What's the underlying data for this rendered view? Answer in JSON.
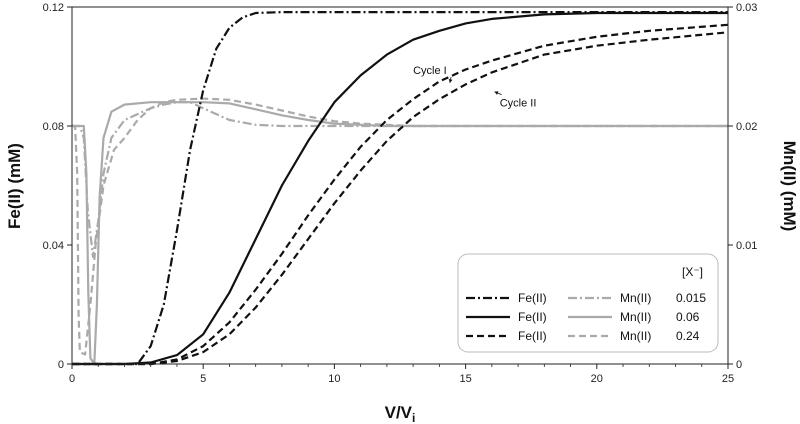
{
  "chart_data": {
    "type": "line",
    "xlabel": "V/V",
    "xlabel_sub": "i",
    "ylabel_left": "Fe(II) (mM)",
    "ylabel_right": "Mn(II) (mM)",
    "xlim": [
      0,
      25
    ],
    "ylim_left": [
      0,
      0.12
    ],
    "ylim_right": [
      0,
      0.03
    ],
    "x_ticks": [
      0,
      5,
      10,
      15,
      20,
      25
    ],
    "y_left_ticks": [
      0,
      0.04,
      0.08,
      0.12
    ],
    "y_left_tick_labels": [
      "0",
      "0.04",
      "0.08",
      "0.12"
    ],
    "y_right_ticks": [
      0,
      0.01,
      0.02,
      0.03
    ],
    "y_right_tick_labels": [
      "0",
      "0.01",
      "0.02",
      "0.03"
    ],
    "grid": false,
    "legend": {
      "position": "bottom-right",
      "header": "[X⁻]",
      "rows": [
        {
          "fe_label": "Fe(II)",
          "mn_label": "Mn(II)",
          "conc": "0.015",
          "dash": "dashdot"
        },
        {
          "fe_label": "Fe(II)",
          "mn_label": "Mn(II)",
          "conc": "0.06",
          "dash": "solid"
        },
        {
          "fe_label": "Fe(II)",
          "mn_label": "Mn(II)",
          "conc": "0.24",
          "dash": "dashed"
        }
      ]
    },
    "annotations": [
      {
        "text": "Cycle I",
        "x": 13.0,
        "y_left": 0.0975,
        "arrow_to": [
          14.4,
          0.0945
        ]
      },
      {
        "text": "Cycle II",
        "x": 16.3,
        "y_left": 0.0865,
        "arrow_to": [
          16.1,
          0.0915
        ]
      }
    ],
    "series": [
      {
        "axis": "left",
        "dash": "dashdot",
        "color": "#111111",
        "points": [
          [
            0,
            0
          ],
          [
            2.5,
            0
          ],
          [
            3,
            0.006
          ],
          [
            3.5,
            0.02
          ],
          [
            4,
            0.045
          ],
          [
            4.5,
            0.072
          ],
          [
            5,
            0.092
          ],
          [
            5.5,
            0.106
          ],
          [
            6,
            0.113
          ],
          [
            6.5,
            0.1165
          ],
          [
            7,
            0.118
          ],
          [
            8,
            0.1183
          ],
          [
            10,
            0.1183
          ],
          [
            25,
            0.1183
          ]
        ]
      },
      {
        "axis": "left",
        "dash": "solid",
        "color": "#111111",
        "points": [
          [
            0,
            0
          ],
          [
            2,
            0
          ],
          [
            3,
            0.0005
          ],
          [
            4,
            0.003
          ],
          [
            5,
            0.01
          ],
          [
            6,
            0.024
          ],
          [
            7,
            0.042
          ],
          [
            8,
            0.06
          ],
          [
            9,
            0.075
          ],
          [
            10,
            0.088
          ],
          [
            11,
            0.097
          ],
          [
            12,
            0.104
          ],
          [
            13,
            0.109
          ],
          [
            14,
            0.112
          ],
          [
            15,
            0.1145
          ],
          [
            16,
            0.116
          ],
          [
            18,
            0.1175
          ],
          [
            20,
            0.118
          ],
          [
            25,
            0.118
          ]
        ]
      },
      {
        "axis": "left",
        "dash": "dashed",
        "color": "#111111",
        "points": [
          [
            0,
            0
          ],
          [
            3,
            0
          ],
          [
            4,
            0.001
          ],
          [
            5,
            0.004
          ],
          [
            6,
            0.01
          ],
          [
            7,
            0.019
          ],
          [
            8,
            0.03
          ],
          [
            9,
            0.042
          ],
          [
            10,
            0.054
          ],
          [
            11,
            0.065
          ],
          [
            12,
            0.075
          ],
          [
            13,
            0.083
          ],
          [
            14,
            0.089
          ],
          [
            15,
            0.094
          ],
          [
            16,
            0.098
          ],
          [
            18,
            0.104
          ],
          [
            20,
            0.107
          ],
          [
            22,
            0.109
          ],
          [
            25,
            0.1115
          ]
        ]
      },
      {
        "axis": "left",
        "dash": "dashed",
        "color": "#111111",
        "points": [
          [
            0,
            0
          ],
          [
            3,
            0
          ],
          [
            4,
            0.0015
          ],
          [
            5,
            0.006
          ],
          [
            6,
            0.014
          ],
          [
            7,
            0.025
          ],
          [
            8,
            0.037
          ],
          [
            9,
            0.05
          ],
          [
            10,
            0.062
          ],
          [
            11,
            0.073
          ],
          [
            12,
            0.082
          ],
          [
            13,
            0.089
          ],
          [
            14,
            0.095
          ],
          [
            15,
            0.099
          ],
          [
            16,
            0.102
          ],
          [
            18,
            0.107
          ],
          [
            20,
            0.11
          ],
          [
            22,
            0.112
          ],
          [
            25,
            0.114
          ]
        ]
      },
      {
        "axis": "right",
        "dash": "dashdot",
        "color": "#aaaaaa",
        "points": [
          [
            0,
            0.02
          ],
          [
            0.3,
            0.02
          ],
          [
            0.45,
            0.019
          ],
          [
            0.6,
            0.013
          ],
          [
            0.8,
            0.009
          ],
          [
            1.0,
            0.012
          ],
          [
            1.2,
            0.016
          ],
          [
            1.5,
            0.019
          ],
          [
            2,
            0.0205
          ],
          [
            2.5,
            0.021
          ],
          [
            3,
            0.0215
          ],
          [
            3.5,
            0.0218
          ],
          [
            4,
            0.022
          ],
          [
            4.5,
            0.022
          ],
          [
            5,
            0.0215
          ],
          [
            5.5,
            0.021
          ],
          [
            6,
            0.0205
          ],
          [
            7,
            0.0201
          ],
          [
            8,
            0.02
          ],
          [
            25,
            0.02
          ]
        ]
      },
      {
        "axis": "right",
        "dash": "solid",
        "color": "#aaaaaa",
        "points": [
          [
            0,
            0.02
          ],
          [
            0.45,
            0.02
          ],
          [
            0.55,
            0.016
          ],
          [
            0.62,
            0.006
          ],
          [
            0.7,
            0.0005
          ],
          [
            0.85,
            0
          ],
          [
            0.95,
            0.005
          ],
          [
            1.05,
            0.014
          ],
          [
            1.2,
            0.019
          ],
          [
            1.5,
            0.0212
          ],
          [
            2,
            0.0218
          ],
          [
            3,
            0.022
          ],
          [
            4,
            0.022
          ],
          [
            5,
            0.022
          ],
          [
            6,
            0.0219
          ],
          [
            7,
            0.0214
          ],
          [
            8,
            0.0209
          ],
          [
            9,
            0.0205
          ],
          [
            10,
            0.0202
          ],
          [
            12,
            0.02
          ],
          [
            25,
            0.02
          ]
        ]
      },
      {
        "axis": "right",
        "dash": "dashed",
        "color": "#aaaaaa",
        "points": [
          [
            0,
            0.02
          ],
          [
            0.12,
            0.02
          ],
          [
            0.2,
            0.016
          ],
          [
            0.25,
            0.004
          ],
          [
            0.3,
            0.001
          ],
          [
            0.5,
            0.0008
          ],
          [
            0.7,
            0.005
          ],
          [
            0.9,
            0.01
          ],
          [
            1.2,
            0.015
          ],
          [
            1.6,
            0.018
          ],
          [
            2,
            0.019
          ],
          [
            2.5,
            0.0205
          ],
          [
            3,
            0.0215
          ],
          [
            3.5,
            0.022
          ],
          [
            4,
            0.0222
          ],
          [
            5,
            0.0223
          ],
          [
            6,
            0.0222
          ],
          [
            7,
            0.0218
          ],
          [
            8,
            0.0213
          ],
          [
            9,
            0.0208
          ],
          [
            10,
            0.0204
          ],
          [
            11,
            0.0202
          ],
          [
            12,
            0.0201
          ],
          [
            13,
            0.02
          ],
          [
            25,
            0.02
          ]
        ]
      }
    ]
  }
}
